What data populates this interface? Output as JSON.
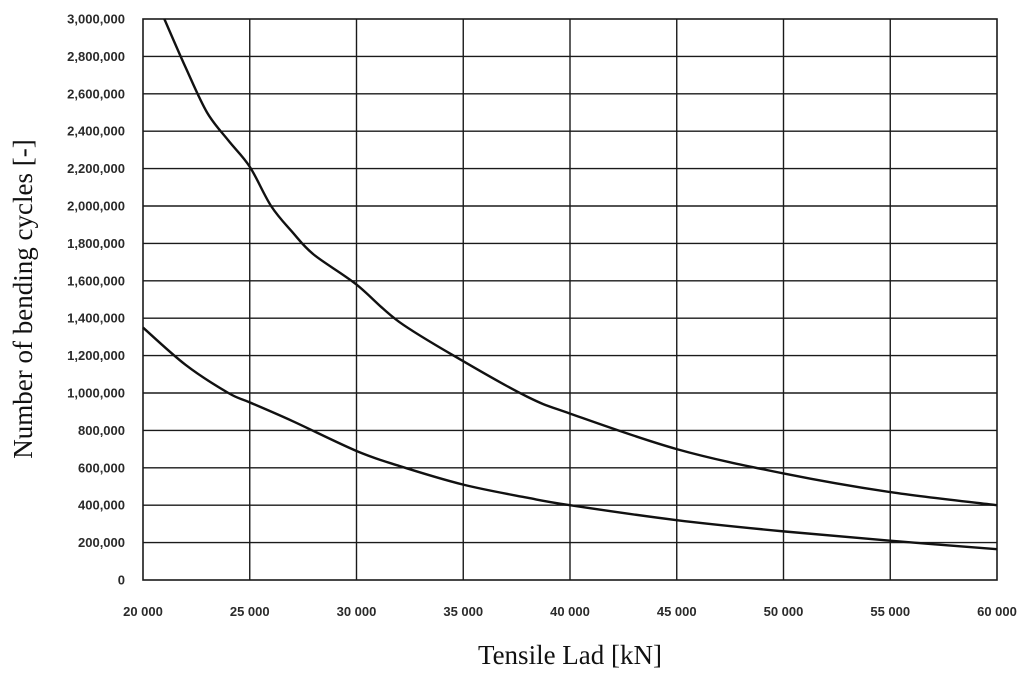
{
  "chart_data": {
    "type": "line",
    "xlabel": "Tensile Lad [kN]",
    "ylabel": "Number of bending cycles [-]",
    "xlim": [
      20000,
      60000
    ],
    "ylim": [
      0,
      3000000
    ],
    "grid": true,
    "x_ticks": [
      {
        "value": 20000,
        "label": "20 000"
      },
      {
        "value": 25000,
        "label": "25 000"
      },
      {
        "value": 30000,
        "label": "30 000"
      },
      {
        "value": 35000,
        "label": "35 000"
      },
      {
        "value": 40000,
        "label": "40 000"
      },
      {
        "value": 45000,
        "label": "45 000"
      },
      {
        "value": 50000,
        "label": "50 000"
      },
      {
        "value": 55000,
        "label": "55 000"
      },
      {
        "value": 60000,
        "label": "60 000"
      }
    ],
    "y_ticks": [
      {
        "value": 0,
        "label": "0"
      },
      {
        "value": 200000,
        "label": "200,000"
      },
      {
        "value": 400000,
        "label": "400,000"
      },
      {
        "value": 600000,
        "label": "600,000"
      },
      {
        "value": 800000,
        "label": "800,000"
      },
      {
        "value": 1000000,
        "label": "1,000,000"
      },
      {
        "value": 1200000,
        "label": "1,200,000"
      },
      {
        "value": 1400000,
        "label": "1,400,000"
      },
      {
        "value": 1600000,
        "label": "1,600,000"
      },
      {
        "value": 1800000,
        "label": "1,800,000"
      },
      {
        "value": 2000000,
        "label": "2,000,000"
      },
      {
        "value": 2200000,
        "label": "2,200,000"
      },
      {
        "value": 2400000,
        "label": "2,400,000"
      },
      {
        "value": 2600000,
        "label": "2,600,000"
      },
      {
        "value": 2800000,
        "label": "2,800,000"
      },
      {
        "value": 3000000,
        "label": "3,000,000"
      }
    ],
    "series": [
      {
        "x": [
          21000,
          22000,
          23000,
          24000,
          25000,
          26000,
          27000,
          28000,
          30000,
          32000,
          35000,
          38000,
          40000,
          45000,
          50000,
          55000,
          60000
        ],
        "values": [
          3000000,
          2740000,
          2500000,
          2350000,
          2210000,
          2000000,
          1860000,
          1740000,
          1580000,
          1380000,
          1170000,
          980000,
          890000,
          700000,
          570000,
          470000,
          400000
        ]
      },
      {
        "x": [
          20000,
          22000,
          24000,
          25000,
          27000,
          30000,
          32000,
          35000,
          38000,
          40000,
          45000,
          50000,
          55000,
          60000
        ],
        "values": [
          1350000,
          1150000,
          1000000,
          950000,
          850000,
          690000,
          610000,
          510000,
          440000,
          400000,
          320000,
          260000,
          210000,
          165000
        ]
      }
    ]
  }
}
